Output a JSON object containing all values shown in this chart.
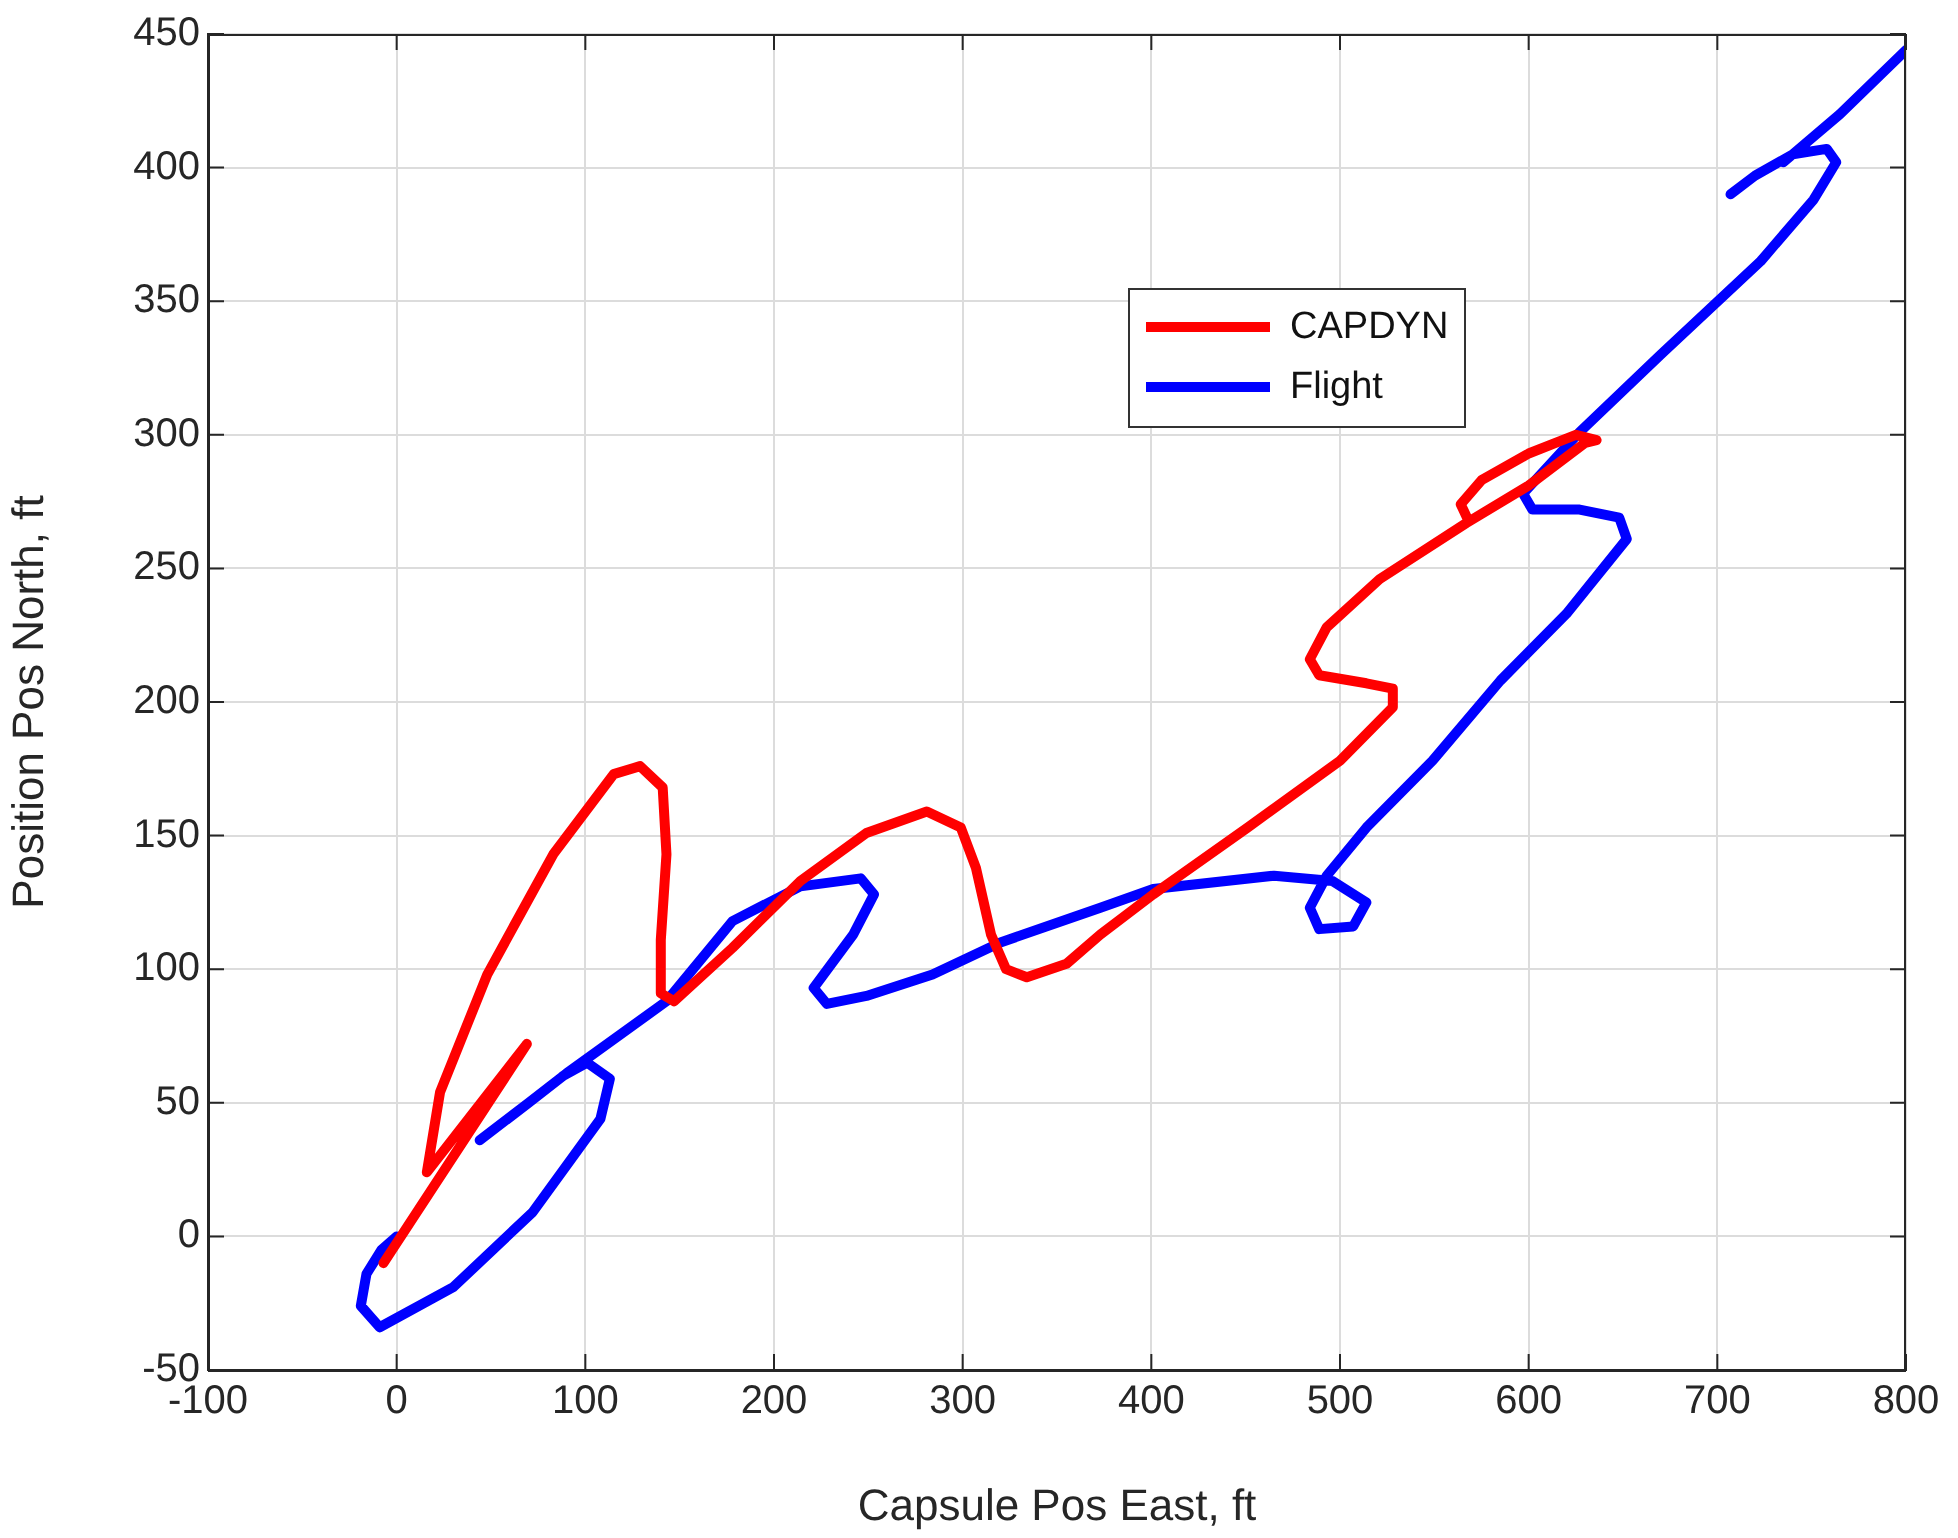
{
  "chart_data": {
    "type": "line",
    "xlabel": "Capsule Pos East, ft",
    "ylabel": "Position Pos North, ft",
    "xlim": [
      -100,
      800
    ],
    "xticks": [
      -100,
      0,
      100,
      200,
      300,
      400,
      500,
      600,
      700,
      800
    ],
    "ylim": [
      -50,
      450
    ],
    "yticks": [
      -50,
      0,
      50,
      100,
      150,
      200,
      250,
      300,
      350,
      400,
      450
    ],
    "grid": true,
    "legend": "top",
    "line_style": "solid",
    "marker": "none",
    "series": [
      {
        "name": "CAPDYN",
        "color": "#ff0000",
        "x": [
          -7,
          69,
          16,
          23,
          48,
          83,
          115,
          129,
          141,
          143,
          140,
          140,
          147,
          178,
          214,
          249,
          281,
          299,
          307,
          315,
          323,
          334,
          355,
          373,
          401,
          451,
          500,
          528,
          528,
          514,
          489,
          484,
          493,
          521,
          567,
          600,
          630,
          636,
          625,
          600,
          575,
          564,
          568
        ],
        "values": [
          -10,
          72,
          24,
          54,
          98,
          143,
          173,
          176,
          168,
          143,
          111,
          91,
          88,
          108,
          133,
          151,
          159,
          153,
          138,
          113,
          100,
          97,
          102,
          113,
          128,
          153,
          178,
          198,
          205,
          207,
          210,
          216,
          228,
          246,
          267,
          281,
          297,
          298,
          300,
          293,
          283,
          274,
          268
        ]
      },
      {
        "name": "Flight",
        "color": "#0000ff",
        "x": [
          0,
          -8,
          -16,
          -19,
          -9,
          30,
          72,
          108,
          113,
          101,
          88,
          null,
          44,
          70,
          90,
          143,
          178,
          214,
          246,
          253,
          242,
          221,
          228,
          249,
          284,
          320,
          373,
          401,
          465,
          496,
          514,
          507,
          489,
          484,
          493,
          514,
          549,
          585,
          620,
          652,
          648,
          627,
          602,
          597,
          627,
          670,
          723,
          751,
          763,
          758,
          740,
          720,
          707,
          null,
          735,
          765,
          800
        ],
        "values": [
          0,
          -5,
          -14,
          -26,
          -34,
          -19,
          9,
          44,
          59,
          65,
          60,
          null,
          36,
          50,
          61,
          88,
          118,
          131,
          134,
          128,
          113,
          93,
          87,
          90,
          98,
          110,
          123,
          130,
          135,
          133,
          125,
          116,
          115,
          123,
          135,
          153,
          178,
          208,
          233,
          261,
          269,
          272,
          272,
          278,
          301,
          330,
          365,
          388,
          402,
          407,
          405,
          397,
          390,
          null,
          402,
          420,
          444
        ]
      }
    ]
  }
}
